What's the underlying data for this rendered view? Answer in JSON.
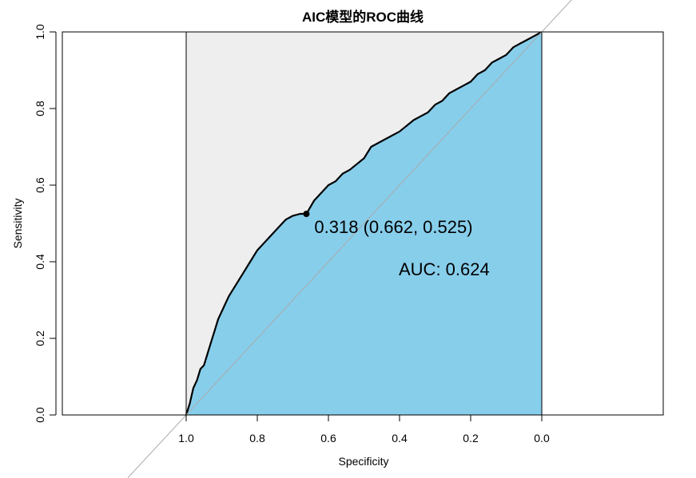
{
  "chart_data": {
    "type": "line",
    "title": "AIC模型的ROC曲线",
    "xlabel": "Specificity",
    "ylabel": "Sensitivity",
    "x_reversed": true,
    "xlim": [
      1.0,
      0.0
    ],
    "ylim": [
      0.0,
      1.0
    ],
    "x_ticks": [
      "1.0",
      "0.8",
      "0.6",
      "0.4",
      "0.2",
      "0.0"
    ],
    "y_ticks": [
      "0.0",
      "0.2",
      "0.4",
      "0.6",
      "0.8",
      "1.0"
    ],
    "grid": false,
    "colors": {
      "auc_fill": "#87CEEB",
      "polygon_fill": "#EEEEEE",
      "curve": "#000000",
      "diagonal": "#AAAAAA"
    },
    "series": [
      {
        "specificity": [
          1.0,
          0.99,
          0.98,
          0.97,
          0.96,
          0.95,
          0.94,
          0.93,
          0.92,
          0.91,
          0.9,
          0.89,
          0.88,
          0.86,
          0.84,
          0.82,
          0.8,
          0.78,
          0.76,
          0.74,
          0.72,
          0.7,
          0.68,
          0.662,
          0.64,
          0.62,
          0.6,
          0.58,
          0.56,
          0.54,
          0.5,
          0.48,
          0.44,
          0.4,
          0.36,
          0.32,
          0.3,
          0.28,
          0.26,
          0.24,
          0.22,
          0.2,
          0.18,
          0.16,
          0.14,
          0.12,
          0.1,
          0.08,
          0.06,
          0.04,
          0.02,
          0.0
        ],
        "sensitivity": [
          0.0,
          0.03,
          0.07,
          0.09,
          0.12,
          0.13,
          0.16,
          0.19,
          0.22,
          0.25,
          0.27,
          0.29,
          0.31,
          0.34,
          0.37,
          0.4,
          0.43,
          0.45,
          0.47,
          0.49,
          0.51,
          0.52,
          0.525,
          0.525,
          0.56,
          0.58,
          0.6,
          0.61,
          0.63,
          0.64,
          0.67,
          0.7,
          0.72,
          0.74,
          0.77,
          0.79,
          0.81,
          0.82,
          0.84,
          0.85,
          0.86,
          0.87,
          0.89,
          0.9,
          0.92,
          0.93,
          0.94,
          0.96,
          0.97,
          0.98,
          0.99,
          1.0
        ]
      }
    ],
    "threshold_point": {
      "specificity": 0.662,
      "sensitivity": 0.525
    },
    "annotations": {
      "threshold_label": "0.318 (0.662, 0.525)",
      "auc_label": "AUC: 0.624"
    }
  }
}
